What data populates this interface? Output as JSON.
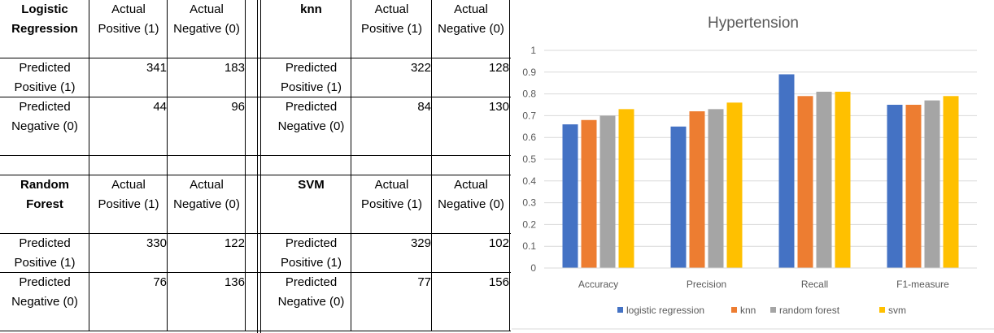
{
  "tables": [
    {
      "title": "Logistic\nRegression",
      "col_headers": [
        "Actual\nPositive (1)",
        "Actual\nNegative (0)"
      ],
      "row_labels": [
        "Predicted\nPositive (1)",
        "Predicted\nNegative (0)"
      ],
      "values": [
        [
          "341",
          "183"
        ],
        [
          "44",
          "96"
        ]
      ]
    },
    {
      "title": "knn",
      "col_headers": [
        "Actual\nPositive (1)",
        "Actual\nNegative (0)"
      ],
      "row_labels": [
        "Predicted\nPositive (1)",
        "Predicted\nNegative (0)"
      ],
      "values": [
        [
          "322",
          "128"
        ],
        [
          "84",
          "130"
        ]
      ]
    },
    {
      "title": "Random\nForest",
      "col_headers": [
        "Actual\nPositive (1)",
        "Actual\nNegative (0)"
      ],
      "row_labels": [
        "Predicted\nPositive (1)",
        "Predicted\nNegative (0)"
      ],
      "values": [
        [
          "330",
          "122"
        ],
        [
          "76",
          "136"
        ]
      ]
    },
    {
      "title": "SVM",
      "col_headers": [
        "Actual\nPositive (1)",
        "Actual\nNegative (0)"
      ],
      "row_labels": [
        "Predicted\nPositive (1)",
        "Predicted\nNegative (0)"
      ],
      "values": [
        [
          "329",
          "102"
        ],
        [
          "77",
          "156"
        ]
      ]
    }
  ],
  "chart_data": {
    "type": "bar",
    "title": "Hypertension",
    "categories": [
      "Accuracy",
      "Precision",
      "Recall",
      "F1-measure"
    ],
    "series": [
      {
        "name": "logistic regression",
        "color": "#4472C4",
        "values": [
          0.66,
          0.65,
          0.89,
          0.75
        ]
      },
      {
        "name": "knn",
        "color": "#ED7D31",
        "values": [
          0.68,
          0.72,
          0.79,
          0.75
        ]
      },
      {
        "name": "random forest",
        "color": "#A5A5A5",
        "values": [
          0.7,
          0.73,
          0.81,
          0.77
        ]
      },
      {
        "name": "svm",
        "color": "#FFC000",
        "values": [
          0.73,
          0.76,
          0.81,
          0.79
        ]
      }
    ],
    "y_ticks": [
      "0",
      "0.1",
      "0.2",
      "0.3",
      "0.4",
      "0.5",
      "0.6",
      "0.7",
      "0.8",
      "0.9",
      "1"
    ],
    "ylim": [
      0,
      1
    ],
    "grid": true,
    "legend_position": "bottom"
  }
}
